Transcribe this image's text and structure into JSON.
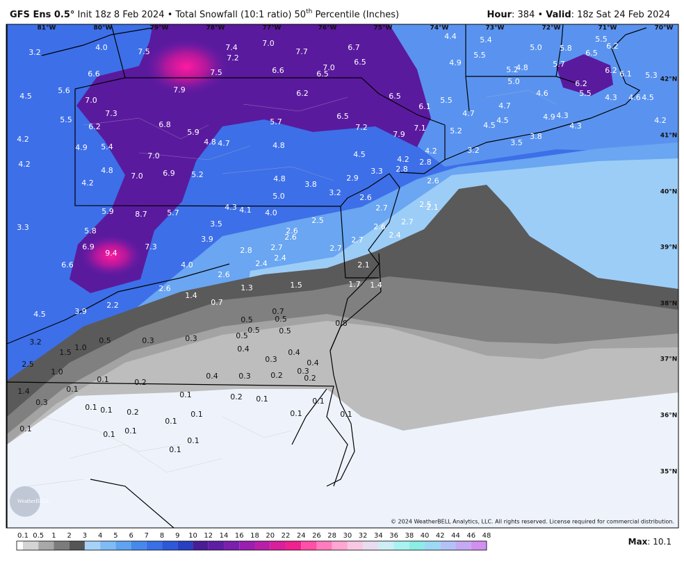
{
  "header": {
    "model": "GFS Ens 0.5°",
    "description": "Init 18z 8 Feb 2024 • Total Snowfall (10:1 ratio) 50",
    "description_sup": "th",
    "description_end": " Percentile (Inches)",
    "hour_label": "Hour",
    "hour_value": ": 384 • ",
    "valid_label": "Valid",
    "valid_value": ": 18z Sat 24 Feb 2024"
  },
  "map": {
    "lon_labels": [
      "81°W",
      "80°W",
      "79°W",
      "78°W",
      "77°W",
      "76°W",
      "75°W",
      "74°W",
      "73°W",
      "72°W",
      "71°W",
      "70°W"
    ],
    "lat_labels": [
      "42°N",
      "41°N",
      "40°N",
      "39°N",
      "38°N",
      "37°N",
      "36°N",
      "35°N"
    ],
    "values": [
      "3.2",
      "4.0",
      "7.5",
      "7.4",
      "7.2",
      "7.0",
      "7.7",
      "6.7",
      "6.5",
      "7.0",
      "6.5",
      "6.6",
      "7.5",
      "6.6",
      "4.4",
      "5.4",
      "5.5",
      "4.9",
      "5.0",
      "5.8",
      "6.5",
      "5.5",
      "6.2",
      "5.7",
      "5.2",
      "4.8",
      "5.0",
      "6.2",
      "6.1",
      "5.3",
      "6.2",
      "5.6",
      "4.5",
      "7.0",
      "7.9",
      "6.2",
      "6.5",
      "6.1",
      "5.5",
      "4.6",
      "5.5",
      "4.3",
      "4.6",
      "4.5",
      "7.3",
      "5.5",
      "6.2",
      "6.8",
      "5.9",
      "5.7",
      "6.5",
      "7.2",
      "7.9",
      "7.1",
      "4.7",
      "4.7",
      "4.5",
      "4.5",
      "5.2",
      "4.9",
      "4.3",
      "4.3",
      "4.2",
      "4.2",
      "4.9",
      "5.4",
      "4.8",
      "4.7",
      "4.8",
      "4.5",
      "4.2",
      "3.2",
      "3.5",
      "3.8",
      "4.2",
      "4.8",
      "7.0",
      "7.0",
      "6.9",
      "5.2",
      "4.8",
      "3.8",
      "2.9",
      "3.3",
      "4.2",
      "2.8",
      "2.8",
      "2.6",
      "4.2",
      "3.2",
      "5.0",
      "2.6",
      "2.7",
      "2.5",
      "2.1",
      "5.9",
      "8.7",
      "5.7",
      "4.3",
      "4.1",
      "4.0",
      "3.5",
      "2.7",
      "2.6",
      "3.3",
      "5.8",
      "2.6",
      "2.6",
      "2.5",
      "3.9",
      "2.7",
      "2.4",
      "6.9",
      "9.4",
      "7.3",
      "2.8",
      "2.7",
      "2.4",
      "2.7",
      "6.6",
      "4.0",
      "2.4",
      "2.1",
      "2.6",
      "1.3",
      "1.5",
      "1.7",
      "1.4",
      "2.6",
      "1.4",
      "0.7",
      "2.2",
      "3.9",
      "4.5",
      "0.7",
      "0.5",
      "0.5",
      "0.8",
      "0.5",
      "0.5",
      "0.5",
      "3.2",
      "0.5",
      "1.0",
      "1.5",
      "0.3",
      "0.3",
      "0.4",
      "0.4",
      "0.3",
      "0.4",
      "2.5",
      "1.0",
      "0.3",
      "0.4",
      "0.3",
      "0.2",
      "0.2",
      "0.1",
      "0.2",
      "0.1",
      "1.4",
      "0.3",
      "0.1",
      "0.2",
      "0.1",
      "0.1",
      "0.1",
      "0.1",
      "0.2",
      "0.1",
      "0.1",
      "0.1",
      "0.1",
      "0.1",
      "0.1",
      "0.1",
      "0.1",
      "0.1"
    ],
    "copyright": "© 2024 WeatherBELL Analytics, LLC. All rights reserved. License required for commercial distribution.",
    "logo": "WeatherBELL"
  },
  "legend": {
    "labels": [
      "0.1",
      "0.5",
      "1",
      "2",
      "3",
      "4",
      "5",
      "6",
      "7",
      "8",
      "9",
      "10",
      "12",
      "14",
      "16",
      "18",
      "20",
      "22",
      "24",
      "26",
      "28",
      "30",
      "32",
      "34",
      "36",
      "38",
      "40",
      "42",
      "44",
      "46",
      "48"
    ],
    "colors": [
      "#ffffff",
      "#d4d4d4",
      "#a8a8a8",
      "#7c7c7c",
      "#555555",
      "#a6d2f8",
      "#80bbf5",
      "#5fa3f1",
      "#4689ec",
      "#3a70e5",
      "#2f58d8",
      "#2940c2",
      "#4a1d96",
      "#5e1ea3",
      "#7a1fae",
      "#9a1fb0",
      "#b81fa8",
      "#d81f9c",
      "#f0208f",
      "#ff4fa6",
      "#ff7cbd",
      "#ffa6d2",
      "#f8c8e2",
      "#e8dcef",
      "#cdeef5",
      "#a9f2f2",
      "#8cece6",
      "#9fd8f4",
      "#b3c2f6",
      "#c4aaf2",
      "#d18ff0"
    ],
    "max_label": "Max",
    "max_value": ": 10.1"
  }
}
